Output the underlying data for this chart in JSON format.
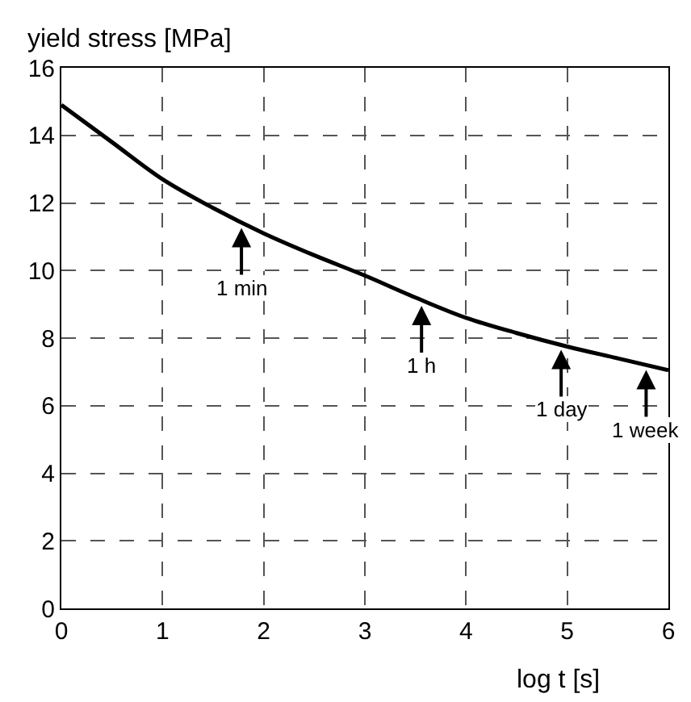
{
  "chart_data": {
    "type": "line",
    "xlabel": "log t [s]",
    "ylabel": "yield stress [MPa]",
    "x": [
      0,
      0.5,
      1,
      1.5,
      2,
      2.5,
      3,
      3.5,
      4,
      4.5,
      5,
      5.5,
      6
    ],
    "series": [
      {
        "color": "#000000",
        "values": [
          14.9,
          13.8,
          12.7,
          11.85,
          11.1,
          10.45,
          9.85,
          9.2,
          8.6,
          8.15,
          7.75,
          7.4,
          7.05
        ]
      }
    ],
    "xlim": [
      0,
      6
    ],
    "xticks": [
      0,
      1,
      2,
      3,
      4,
      5,
      6
    ],
    "ylim": [
      0,
      16
    ],
    "yticks": [
      0,
      2,
      4,
      6,
      8,
      10,
      12,
      14,
      16
    ],
    "grid": true,
    "marker": "none",
    "line_style": "solid",
    "annotations": [
      {
        "text": "1 min",
        "x": 1.78,
        "y": 11.4
      },
      {
        "text": "1 h",
        "x": 3.56,
        "y": 9.1
      },
      {
        "text": "1 day",
        "x": 4.94,
        "y": 7.8
      },
      {
        "text": "1 week",
        "x": 5.78,
        "y": 7.2
      }
    ]
  }
}
